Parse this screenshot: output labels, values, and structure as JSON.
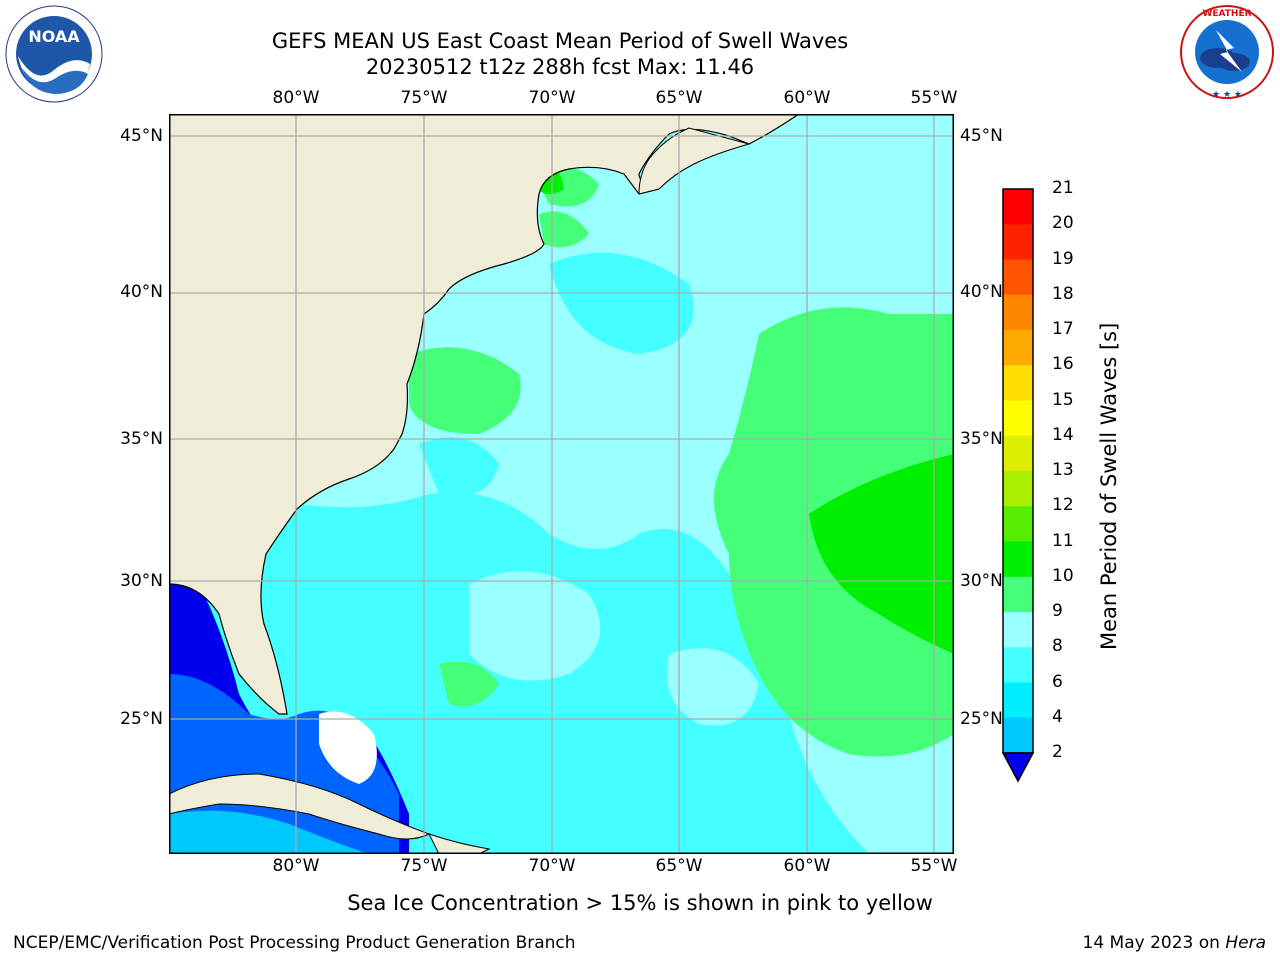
{
  "title": {
    "line1": "GEFS MEAN US East Coast Mean Period of Swell Waves",
    "line2": "20230512 t12z 288h fcst   Max: 11.46"
  },
  "axes": {
    "longitude_labels": [
      "80°W",
      "75°W",
      "70°W",
      "65°W",
      "60°W",
      "55°W"
    ],
    "latitude_labels": [
      "45°N",
      "40°N",
      "35°N",
      "30°N",
      "25°N"
    ]
  },
  "colorbar": {
    "label": "Mean Period of Swell Waves [s]",
    "ticks": [
      "2",
      "4",
      "6",
      "8",
      "9",
      "10",
      "11",
      "12",
      "13",
      "14",
      "15",
      "16",
      "17",
      "18",
      "19",
      "20",
      "21"
    ],
    "colors": [
      "#0000ee",
      "#0064ff",
      "#00c8ff",
      "#00eeff",
      "#44ffff",
      "#99ffff",
      "#44ff77",
      "#00ee00",
      "#55ee00",
      "#aaee00",
      "#ddee00",
      "#ffff00",
      "#ffdd00",
      "#ffaa00",
      "#ff8800",
      "#ff5500",
      "#ff2200",
      "#ff0000"
    ]
  },
  "note": "Sea Ice Concentration > 15% is shown in pink to yellow",
  "footer": {
    "left": "NCEP/EMC/Verification Post Processing Product Generation Branch",
    "right_prefix": "14 May 2023 on ",
    "right_host": "Hera"
  },
  "logos": {
    "noaa": "NOAA",
    "nws": "NATIONAL WEATHER SERVICE"
  }
}
